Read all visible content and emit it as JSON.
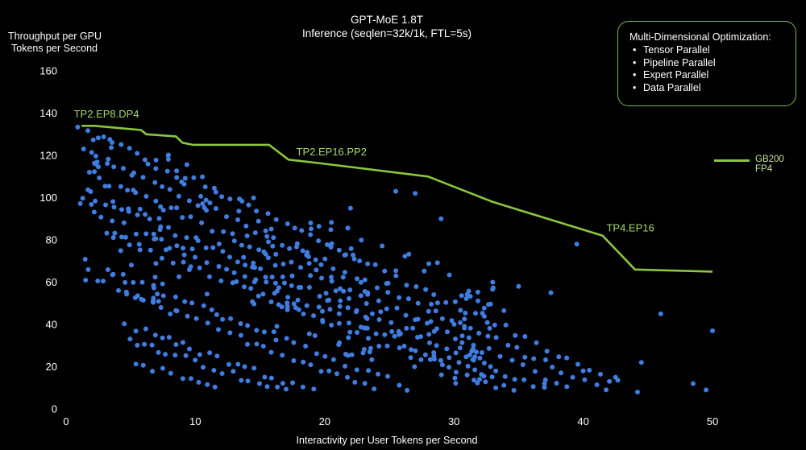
{
  "chart_data": {
    "type": "scatter",
    "title": "GPT-MoE 1.8T",
    "subtitle": "Inference (seqlen=32k/1k, FTL=5s)",
    "xlabel": "Interactivity per User Tokens per Second",
    "ylabel_line1": "Throughput per GPU",
    "ylabel_line2": "Tokens per Second",
    "xlim": [
      0,
      50
    ],
    "ylim": [
      0,
      160
    ],
    "xticks": [
      0,
      10,
      20,
      30,
      40,
      50
    ],
    "yticks": [
      0,
      20,
      40,
      60,
      80,
      100,
      120,
      140,
      160
    ],
    "grid": false,
    "colors": {
      "points": "#3f7de0",
      "frontier": "#8cc63f",
      "annotation": "#a6d86c",
      "background": "#000000"
    },
    "frontier_series": {
      "name": "GB200 FP4",
      "x": [
        1.2,
        2.2,
        4,
        5.8,
        6.2,
        8.5,
        9.0,
        9.8,
        15.7,
        17.2,
        20,
        28,
        33,
        41.5,
        44,
        50
      ],
      "y": [
        134,
        134,
        133,
        132,
        130,
        129,
        126,
        125,
        125,
        118,
        116,
        110,
        98,
        82,
        66,
        65
      ]
    },
    "annotations": [
      {
        "text": "TP2.EP8.DP4",
        "x": 0.6,
        "y": 138
      },
      {
        "text": "TP2.EP16.PP2",
        "x": 17.8,
        "y": 120
      },
      {
        "text": "TP4.EP16",
        "x": 41.8,
        "y": 84
      }
    ],
    "scatter_band_levels": [
      134,
      122,
      111,
      100,
      91,
      83,
      64,
      55,
      40,
      33,
      22
    ],
    "isolated_points": [
      {
        "x": 39.5,
        "y": 78
      },
      {
        "x": 46,
        "y": 45
      },
      {
        "x": 50,
        "y": 37
      },
      {
        "x": 44.5,
        "y": 22
      },
      {
        "x": 48.5,
        "y": 12
      },
      {
        "x": 49.5,
        "y": 9
      },
      {
        "x": 44.2,
        "y": 8
      },
      {
        "x": 42.5,
        "y": 15
      },
      {
        "x": 33,
        "y": 60
      },
      {
        "x": 35,
        "y": 58
      },
      {
        "x": 37.5,
        "y": 55
      },
      {
        "x": 27,
        "y": 102
      },
      {
        "x": 25.5,
        "y": 103
      },
      {
        "x": 22,
        "y": 95
      },
      {
        "x": 29,
        "y": 90
      },
      {
        "x": 37,
        "y": 12
      },
      {
        "x": 40,
        "y": 18
      }
    ]
  },
  "optimization_box": {
    "title": "Multi-Dimensional Optimization:",
    "items": [
      "Tensor Parallel",
      "Pipeline Parallel",
      "Expert Parallel",
      "Data Parallel"
    ]
  }
}
